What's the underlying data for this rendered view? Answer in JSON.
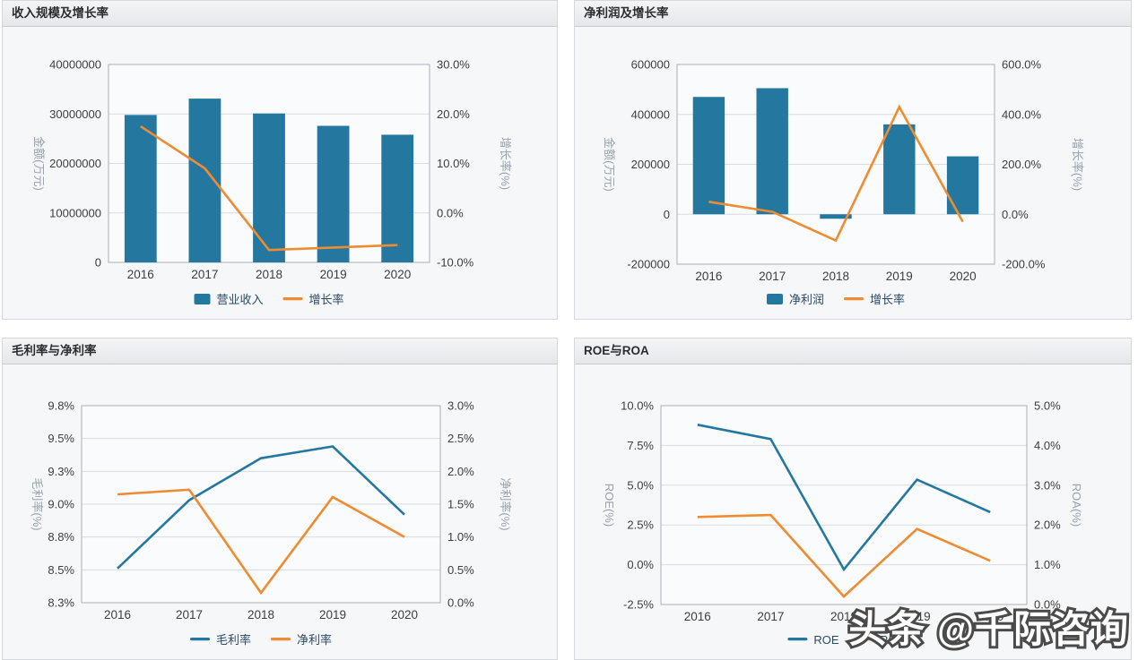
{
  "watermark": "头条 @千际咨询",
  "chart_data": [
    {
      "type": "bar",
      "title": "收入规模及增长率",
      "categories": [
        "2016",
        "2017",
        "2018",
        "2019",
        "2020"
      ],
      "left_axis": {
        "title": "金额(万元)",
        "min": 0,
        "max": 40000000,
        "tick_labels": [
          "40000000",
          "30000000",
          "20000000",
          "10000000",
          "0"
        ]
      },
      "right_axis": {
        "title": "增长率(%)",
        "min": -10,
        "max": 30,
        "tick_labels": [
          "30.0%",
          "20.0%",
          "10.0%",
          "0.0%",
          "-10.0%"
        ]
      },
      "legend_position": "bottom",
      "grid": true,
      "series": [
        {
          "name": "营业收入",
          "type": "bar",
          "axis": "left",
          "color": "#2478a0",
          "values": [
            29800000,
            33100000,
            30100000,
            27600000,
            25800000
          ]
        },
        {
          "name": "增长率",
          "type": "line",
          "axis": "right",
          "color": "#ef8b31",
          "values": [
            17.5,
            9.0,
            -7.5,
            -7.0,
            -6.5
          ]
        }
      ]
    },
    {
      "type": "bar",
      "title": "净利润及增长率",
      "categories": [
        "2016",
        "2017",
        "2018",
        "2019",
        "2020"
      ],
      "left_axis": {
        "title": "金额(万元)",
        "min": -200000,
        "max": 600000,
        "tick_labels": [
          "600000",
          "400000",
          "200000",
          "0",
          "-200000"
        ]
      },
      "right_axis": {
        "title": "增长率(%)",
        "min": -200,
        "max": 600,
        "tick_labels": [
          "600.0%",
          "400.0%",
          "200.0%",
          "0.0%",
          "-200.0%"
        ]
      },
      "legend_position": "bottom",
      "grid": true,
      "series": [
        {
          "name": "净利润",
          "type": "bar",
          "axis": "left",
          "color": "#2478a0",
          "values": [
            470000,
            505000,
            -18000,
            360000,
            232000
          ]
        },
        {
          "name": "增长率",
          "type": "line",
          "axis": "right",
          "color": "#ef8b31",
          "values": [
            50,
            10,
            -105,
            430,
            -30
          ]
        }
      ]
    },
    {
      "type": "line",
      "title": "毛利率与净利率",
      "categories": [
        "2016",
        "2017",
        "2018",
        "2019",
        "2020"
      ],
      "left_axis": {
        "title": "毛利率(%)",
        "min": 8.3,
        "max": 9.8,
        "tick_labels": [
          "9.8%",
          "9.5%",
          "9.3%",
          "9.0%",
          "8.8%",
          "8.5%",
          "8.3%"
        ]
      },
      "right_axis": {
        "title": "净利率(%)",
        "min": 0,
        "max": 3,
        "tick_labels": [
          "3.0%",
          "2.5%",
          "2.0%",
          "1.5%",
          "1.0%",
          "0.5%",
          "0.0%"
        ]
      },
      "legend_position": "bottom",
      "grid": true,
      "series": [
        {
          "name": "毛利率",
          "type": "line",
          "axis": "left",
          "color": "#2478a0",
          "values": [
            8.56,
            9.08,
            9.4,
            9.49,
            8.97
          ]
        },
        {
          "name": "净利率",
          "type": "line",
          "axis": "right",
          "color": "#ef8b31",
          "values": [
            1.65,
            1.72,
            0.15,
            1.61,
            1.0
          ]
        }
      ]
    },
    {
      "type": "line",
      "title": "ROE与ROA",
      "categories": [
        "2016",
        "2017",
        "2018",
        "2019",
        "2020"
      ],
      "left_axis": {
        "title": "ROE(%)",
        "min": -2.5,
        "max": 10,
        "tick_labels": [
          "10.0%",
          "7.5%",
          "5.0%",
          "2.5%",
          "0.0%",
          "-2.5%"
        ]
      },
      "right_axis": {
        "title": "ROA(%)",
        "min": 0,
        "max": 5,
        "tick_labels": [
          "5.0%",
          "4.0%",
          "3.0%",
          "2.0%",
          "1.0%",
          "0.0%"
        ]
      },
      "legend_position": "bottom",
      "grid": true,
      "series": [
        {
          "name": "ROE",
          "type": "line",
          "axis": "left",
          "color": "#2478a0",
          "values": [
            8.8,
            7.9,
            -0.3,
            5.35,
            3.3
          ]
        },
        {
          "name": "ROA",
          "type": "line",
          "axis": "right",
          "color": "#ef8b31",
          "values": [
            2.2,
            2.25,
            0.2,
            1.9,
            1.1
          ]
        }
      ]
    }
  ]
}
